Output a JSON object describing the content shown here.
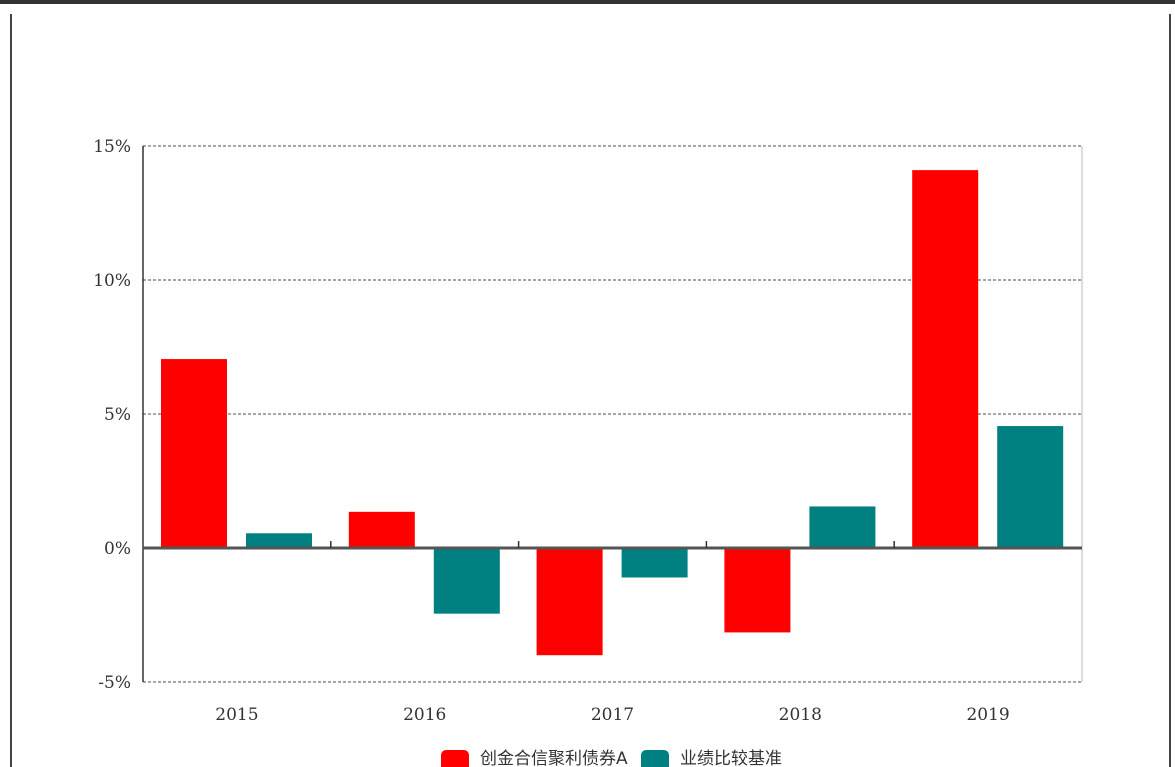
{
  "chart_data": {
    "type": "bar",
    "title": "",
    "xlabel": "",
    "ylabel": "",
    "categories": [
      "2015",
      "2016",
      "2017",
      "2018",
      "2019"
    ],
    "series": [
      {
        "name": "创金合信聚利债券A",
        "color": "#ff0000",
        "values": [
          7.05,
          1.35,
          -4.0,
          -3.15,
          14.1
        ]
      },
      {
        "name": "业绩比较基准",
        "color": "#008080",
        "values": [
          0.55,
          -2.45,
          -1.1,
          1.55,
          4.55
        ]
      }
    ],
    "ylim": [
      -5,
      15
    ],
    "yticks": [
      -5,
      0,
      5,
      10,
      15
    ],
    "ytick_labels": [
      "-5%",
      "0%",
      "5%",
      "10%",
      "15%"
    ],
    "grid": true,
    "legend_position": "bottom"
  }
}
